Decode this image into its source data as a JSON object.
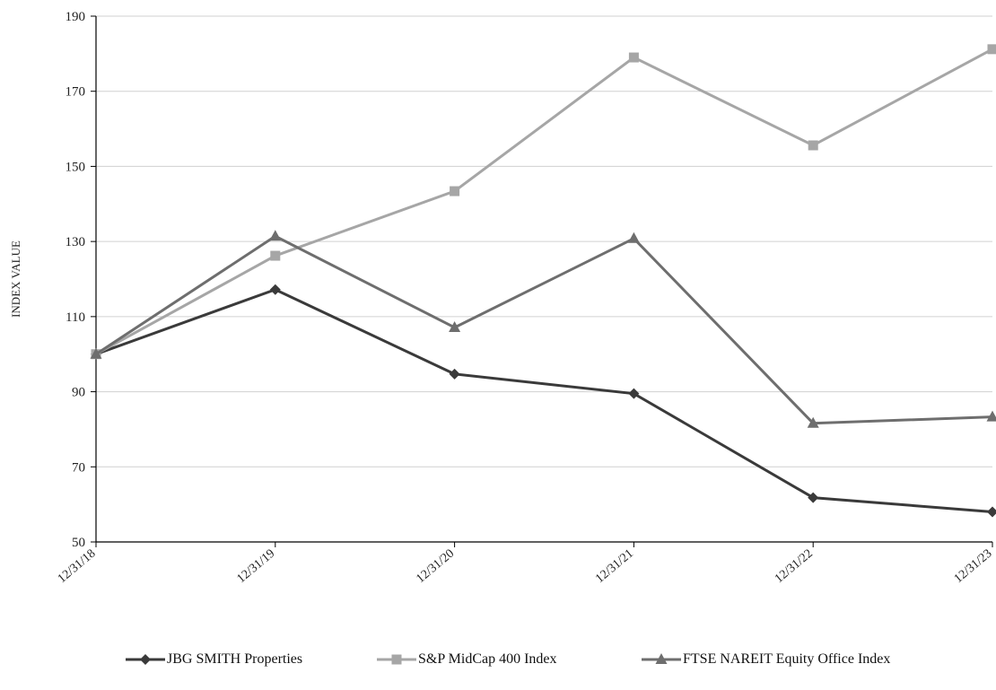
{
  "chart_data": {
    "type": "line",
    "title": "",
    "xlabel": "",
    "ylabel": "INDEX VALUE",
    "ylim": [
      50,
      190
    ],
    "yticks": [
      50,
      70,
      90,
      110,
      130,
      150,
      170,
      190
    ],
    "categories": [
      "12/31/18",
      "12/31/19",
      "12/31/20",
      "12/31/21",
      "12/31/22",
      "12/31/23"
    ],
    "grid": "horizontal",
    "legend_position": "bottom",
    "series": [
      {
        "name": "JBG SMITH Properties",
        "marker": "diamond",
        "color": "#3a3a3a",
        "values": [
          100,
          117.2,
          94.7,
          89.5,
          61.8,
          58.0
        ]
      },
      {
        "name": "S&P MidCap 400 Index",
        "marker": "square",
        "color": "#a6a6a6",
        "values": [
          100,
          126.2,
          143.4,
          179.0,
          155.6,
          181.2
        ]
      },
      {
        "name": "FTSE NAREIT Equity Office Index",
        "marker": "triangle",
        "color": "#6e6e6e",
        "values": [
          100,
          131.4,
          107.1,
          130.8,
          81.6,
          83.3
        ]
      }
    ]
  }
}
